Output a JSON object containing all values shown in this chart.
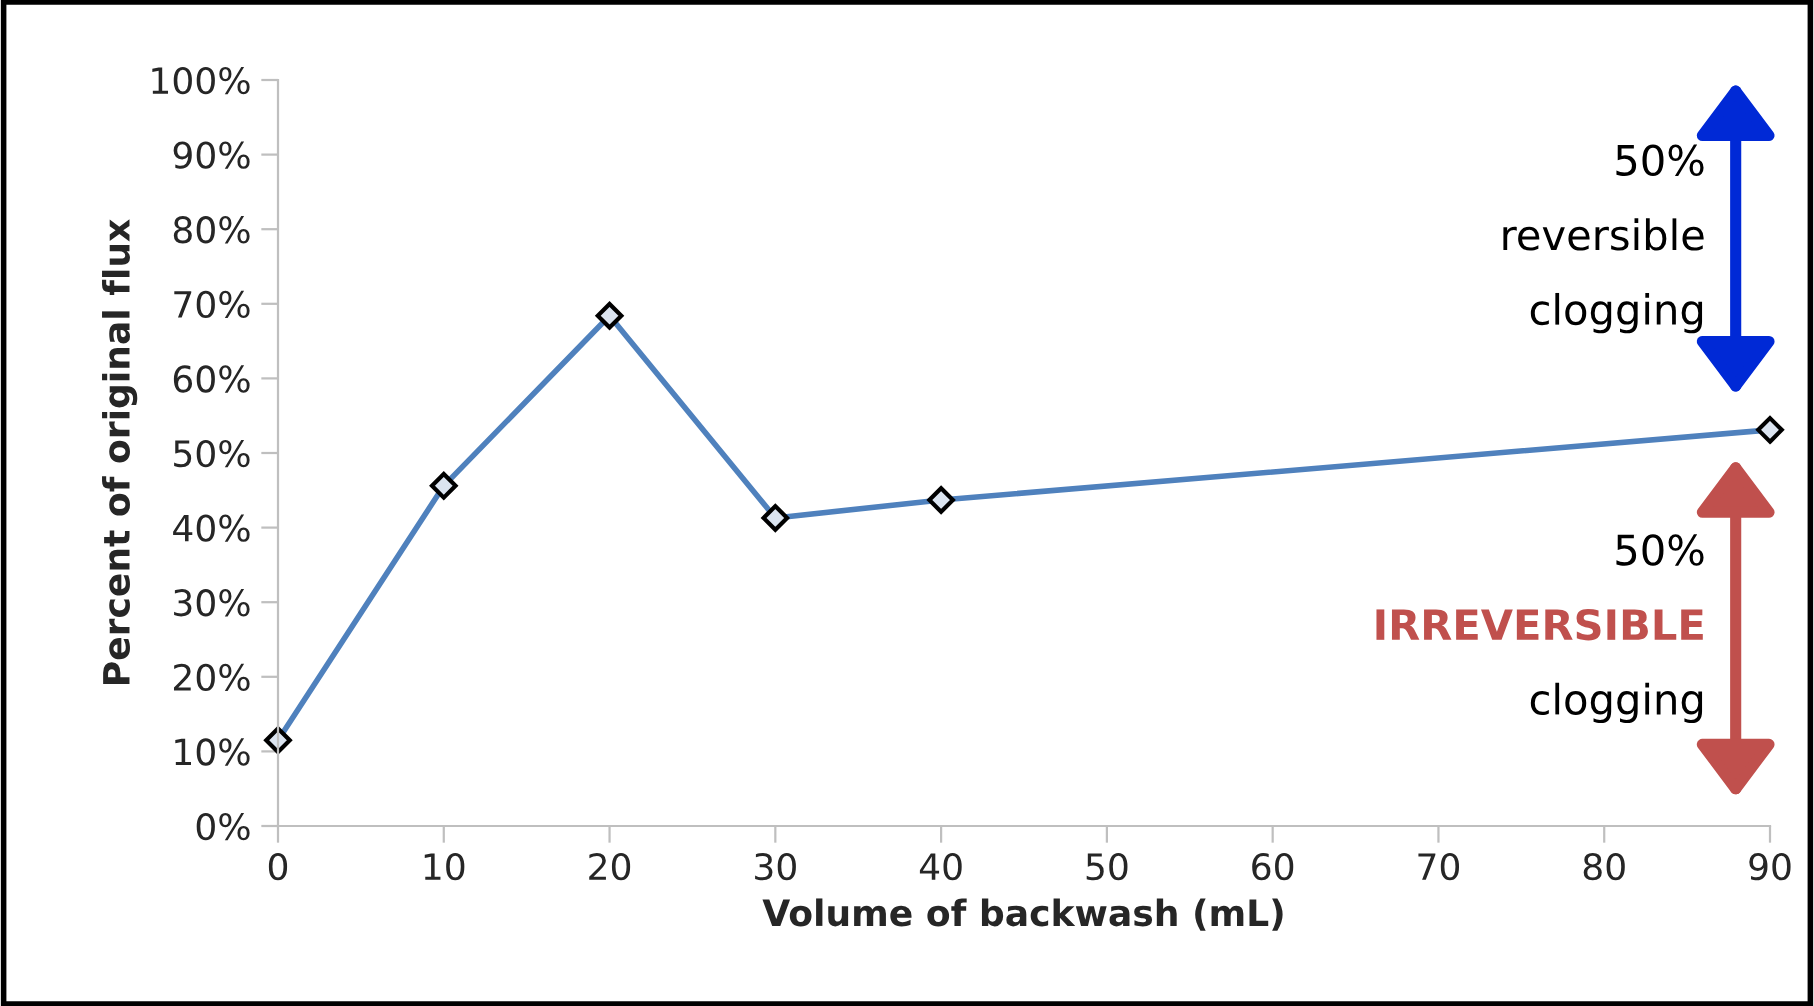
{
  "chart_data": {
    "type": "line",
    "xlabel": "Volume of backwash (mL)",
    "ylabel": "Percent of original flux",
    "x": [
      0,
      10,
      20,
      30,
      40,
      90
    ],
    "series": [
      {
        "color": "#4f81bd",
        "values": [
          11.5,
          45.6,
          68.4,
          41.3,
          43.7,
          53.1
        ]
      }
    ],
    "xlim": [
      0,
      90
    ],
    "xticks": [
      0,
      10,
      20,
      30,
      40,
      50,
      60,
      70,
      80,
      90
    ],
    "ylim": [
      0,
      100
    ],
    "yticks": [
      {
        "value": 0,
        "label": "0%"
      },
      {
        "value": 10,
        "label": "10%"
      },
      {
        "value": 20,
        "label": "20%"
      },
      {
        "value": 30,
        "label": "30%"
      },
      {
        "value": 40,
        "label": "40%"
      },
      {
        "value": 50,
        "label": "50%"
      },
      {
        "value": 60,
        "label": "60%"
      },
      {
        "value": 70,
        "label": "70%"
      },
      {
        "value": 80,
        "label": "80%"
      },
      {
        "value": 90,
        "label": "90%"
      },
      {
        "value": 100,
        "label": "100%"
      }
    ],
    "marker": "diamond",
    "line_style": "solid",
    "grid": false,
    "annotations": [
      "50%",
      "reversible",
      "clogging",
      "50%",
      "IRREVERSIBLE",
      "clogging"
    ]
  }
}
